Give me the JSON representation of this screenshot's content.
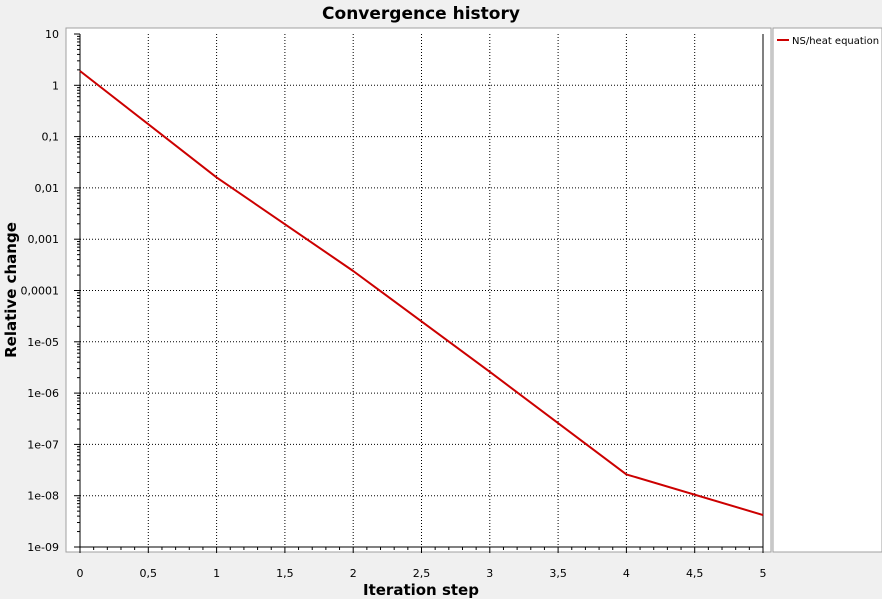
{
  "chart_data": {
    "type": "line",
    "title": "Convergence history",
    "xlabel": "Iteration step",
    "ylabel": "Relative change",
    "xlim": [
      0,
      5
    ],
    "ylim": [
      1e-09,
      10
    ],
    "yscale": "log",
    "grid": true,
    "legend_position": "right",
    "x_ticks": [
      "0",
      "0,5",
      "1",
      "1,5",
      "2",
      "2,5",
      "3",
      "3,5",
      "4",
      "4,5",
      "5"
    ],
    "y_ticks": [
      "10",
      "1",
      "0,1",
      "0,01",
      "0,001",
      "0,0001",
      "1e-05",
      "1e-06",
      "1e-07",
      "1e-08",
      "1e-09"
    ],
    "series": [
      {
        "name": "NS/heat equation",
        "color": "#cc0000",
        "x": [
          0,
          1,
          2,
          3,
          4,
          5
        ],
        "y": [
          1.9,
          0.016,
          0.00024,
          2.6e-06,
          2.6e-08,
          4.2e-09
        ]
      }
    ]
  }
}
